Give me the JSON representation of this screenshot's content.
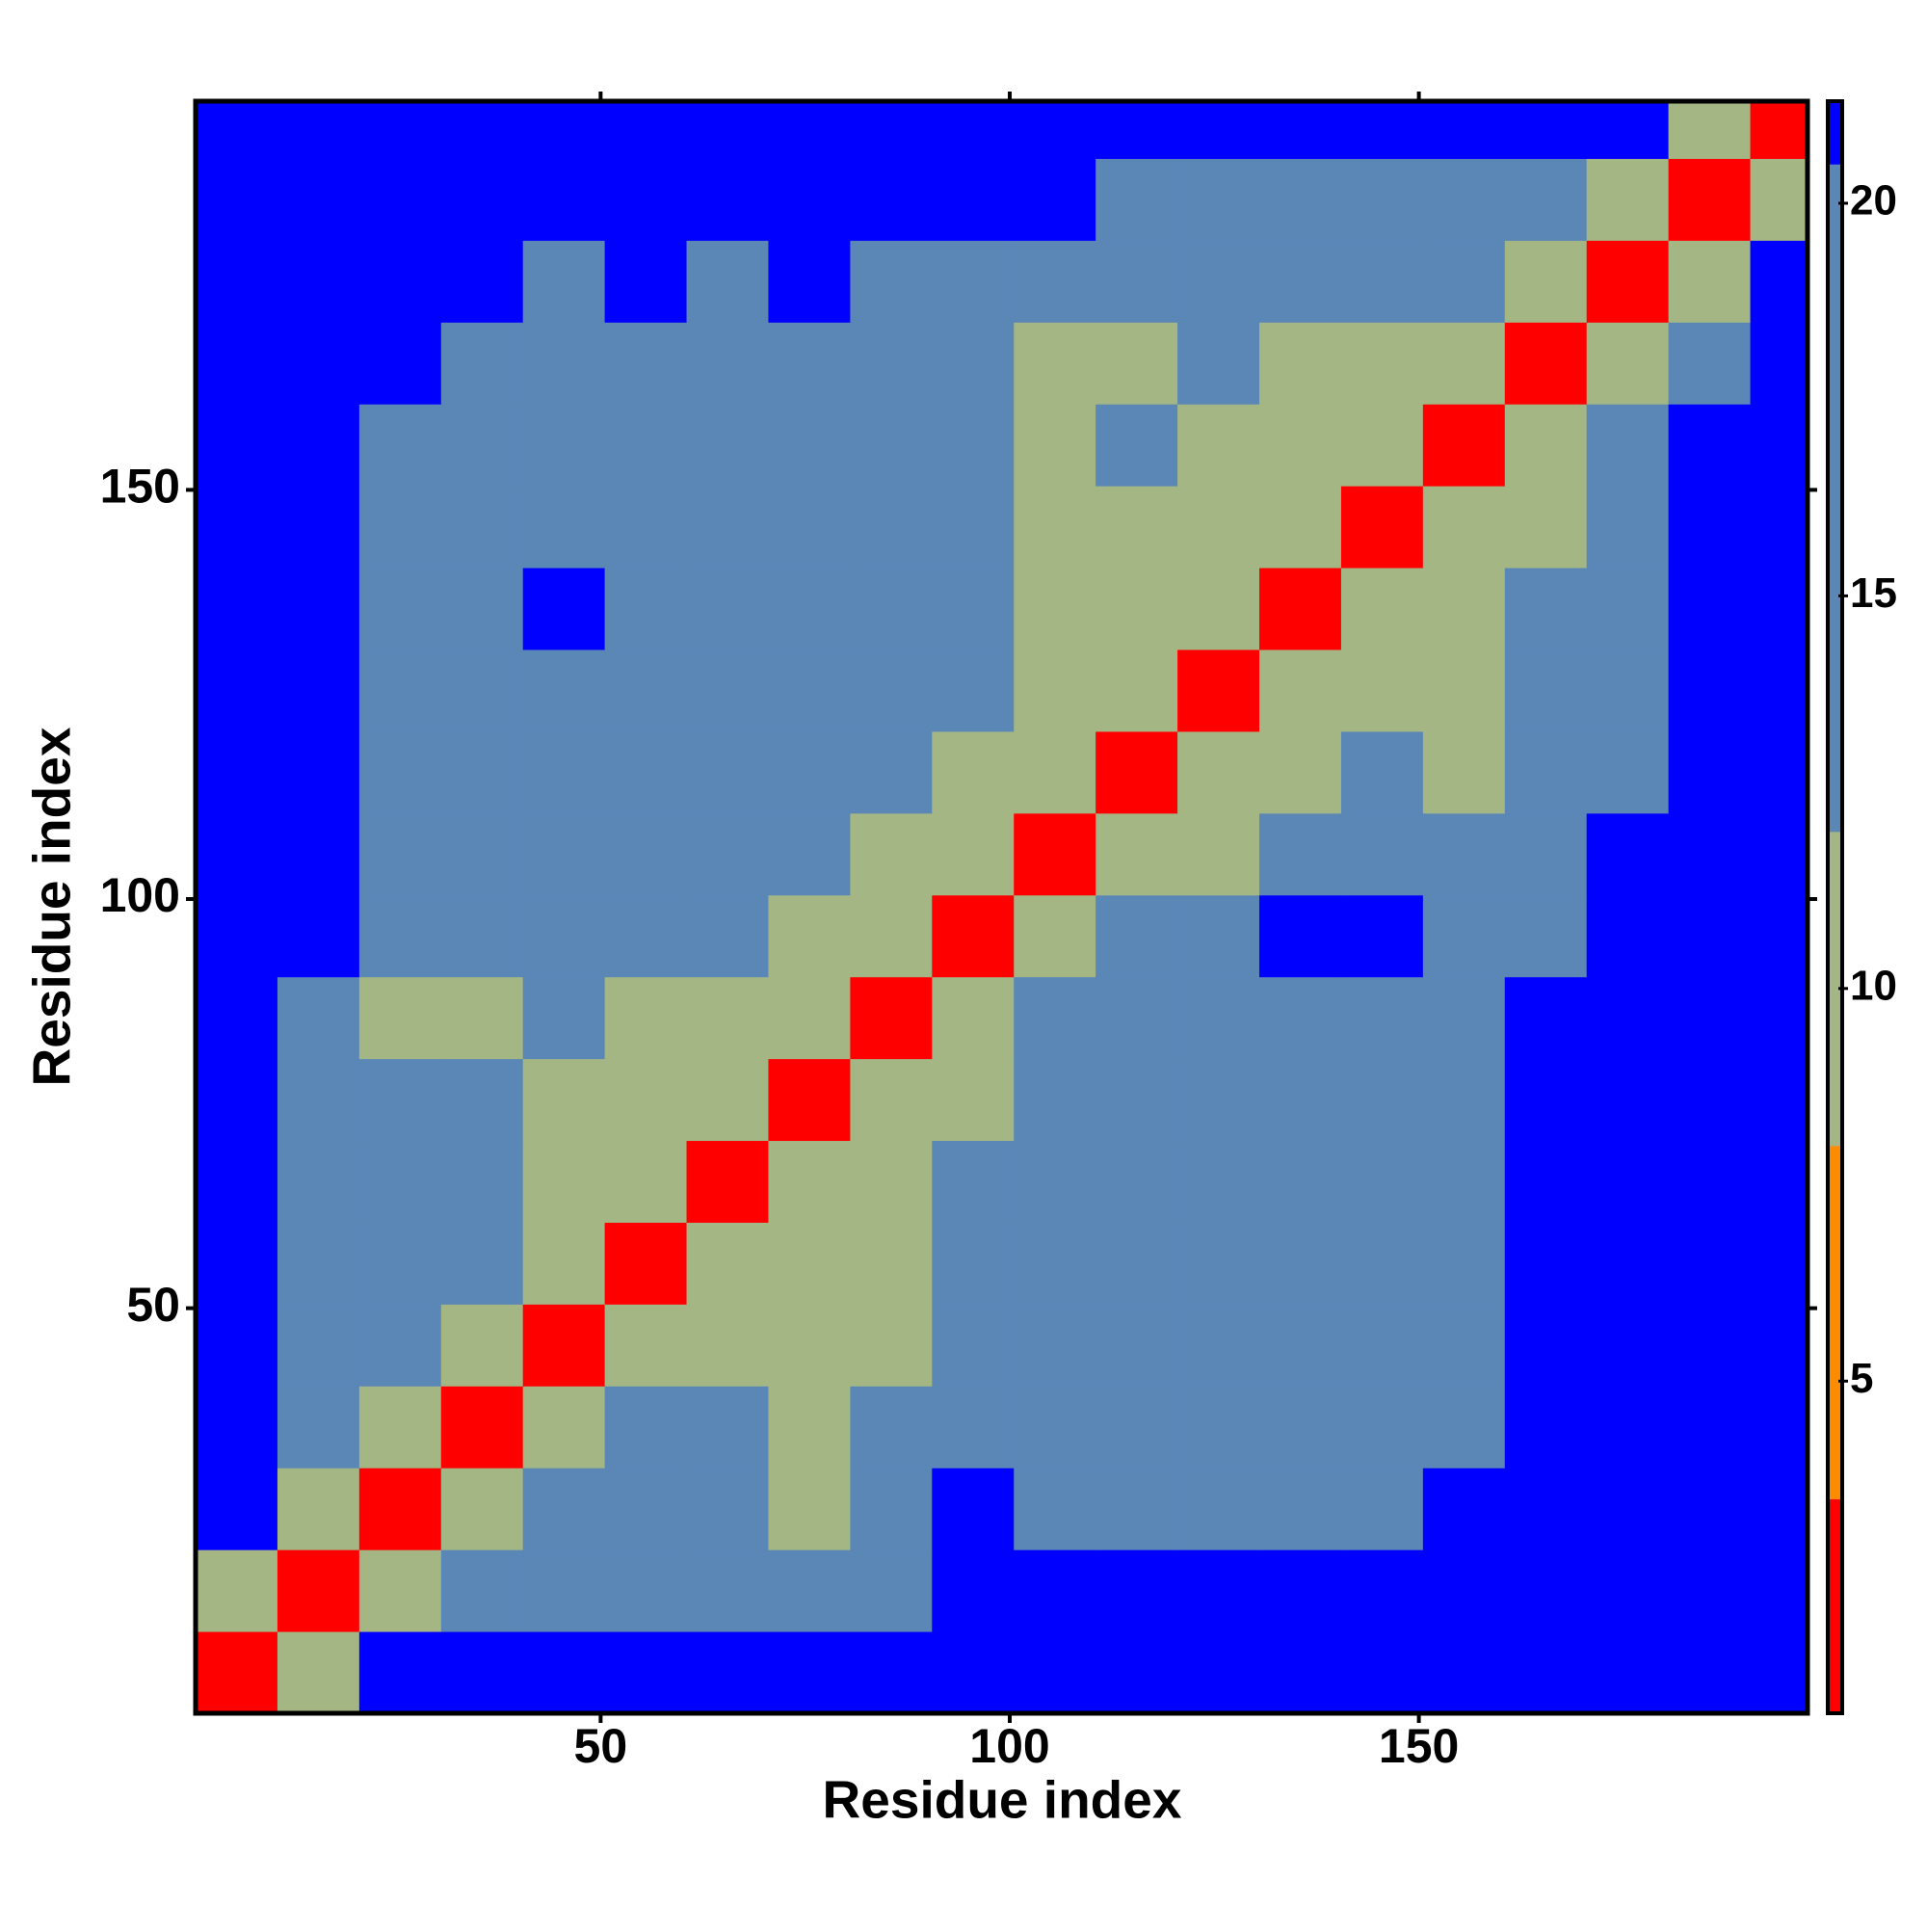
{
  "chart_data": {
    "type": "heatmap",
    "xlabel": "Residue index",
    "ylabel": "Residue index",
    "xlim": [
      0.5,
      197.5
    ],
    "ylim": [
      0.5,
      197.5
    ],
    "xticks": [
      50,
      100,
      150
    ],
    "yticks": [
      50,
      100,
      150
    ],
    "bins": [
      0.5,
      10.5,
      20.5,
      30.5,
      40.5,
      50.5,
      60.5,
      70.5,
      80.5,
      90.5,
      100.5,
      110.5,
      120.5,
      130.5,
      140.5,
      150.5,
      160.5,
      170.5,
      180.5,
      190.5,
      197.5
    ],
    "z": [
      [
        2,
        9,
        21,
        21,
        21,
        21,
        21,
        21,
        21,
        21,
        21,
        21,
        21,
        21,
        21,
        21,
        21,
        21,
        21,
        21
      ],
      [
        9,
        2,
        9,
        15,
        15,
        15,
        15,
        15,
        15,
        21,
        21,
        21,
        21,
        21,
        21,
        21,
        21,
        21,
        21,
        21
      ],
      [
        21,
        9,
        2,
        9,
        15,
        15,
        15,
        9,
        15,
        21,
        15,
        15,
        15,
        15,
        15,
        21,
        21,
        21,
        21,
        21
      ],
      [
        21,
        15,
        9,
        2,
        9,
        15,
        15,
        9,
        15,
        18,
        15,
        15,
        15,
        15,
        15,
        15,
        21,
        21,
        21,
        21
      ],
      [
        21,
        15,
        15,
        9,
        2,
        9,
        9,
        9,
        9,
        15,
        15,
        15,
        15,
        15,
        15,
        15,
        21,
        21,
        21,
        21
      ],
      [
        21,
        15,
        15,
        15,
        9,
        2,
        9,
        9,
        9,
        15,
        15,
        18,
        15,
        15,
        15,
        15,
        21,
        21,
        21,
        21
      ],
      [
        21,
        15,
        15,
        15,
        9,
        9,
        2,
        9,
        9,
        15,
        15,
        15,
        18,
        15,
        15,
        15,
        21,
        21,
        21,
        21
      ],
      [
        21,
        15,
        15,
        15,
        9,
        9,
        9,
        2,
        9,
        9,
        15,
        15,
        15,
        15,
        15,
        15,
        21,
        21,
        21,
        21
      ],
      [
        21,
        15,
        9,
        9,
        15,
        9,
        9,
        9,
        2,
        9,
        15,
        15,
        15,
        18,
        15,
        15,
        21,
        21,
        21,
        21
      ],
      [
        21,
        21,
        15,
        15,
        15,
        15,
        15,
        9,
        9,
        2,
        9,
        15,
        15,
        21,
        21,
        15,
        15,
        21,
        21,
        21
      ],
      [
        21,
        21,
        15,
        15,
        15,
        15,
        15,
        15,
        9,
        9,
        2,
        9,
        9,
        15,
        15,
        15,
        15,
        21,
        21,
        21
      ],
      [
        21,
        21,
        15,
        15,
        15,
        15,
        15,
        15,
        15,
        9,
        9,
        2,
        9,
        9,
        15,
        9,
        15,
        15,
        21,
        21
      ],
      [
        21,
        21,
        15,
        15,
        15,
        15,
        15,
        15,
        15,
        15,
        9,
        9,
        2,
        9,
        9,
        9,
        15,
        15,
        21,
        21
      ],
      [
        21,
        21,
        15,
        15,
        21,
        15,
        15,
        15,
        15,
        15,
        9,
        9,
        9,
        2,
        9,
        9,
        15,
        15,
        21,
        21
      ],
      [
        21,
        21,
        15,
        15,
        15,
        15,
        15,
        15,
        15,
        15,
        9,
        9,
        9,
        9,
        2,
        9,
        9,
        15,
        21,
        21
      ],
      [
        21,
        21,
        15,
        15,
        15,
        15,
        15,
        15,
        15,
        15,
        9,
        15,
        9,
        9,
        9,
        2,
        9,
        15,
        21,
        21
      ],
      [
        21,
        21,
        21,
        15,
        15,
        15,
        15,
        15,
        15,
        15,
        9,
        9,
        15,
        9,
        9,
        9,
        2,
        9,
        15,
        21
      ],
      [
        21,
        21,
        21,
        21,
        15,
        21,
        15,
        21,
        15,
        15,
        15,
        15,
        15,
        15,
        15,
        15,
        9,
        2,
        9,
        21
      ],
      [
        21,
        21,
        21,
        21,
        21,
        21,
        21,
        21,
        21,
        21,
        21,
        15,
        15,
        15,
        15,
        15,
        15,
        9,
        2,
        9
      ],
      [
        21,
        21,
        21,
        21,
        21,
        21,
        21,
        21,
        21,
        21,
        21,
        21,
        21,
        21,
        21,
        21,
        21,
        21,
        9,
        2
      ]
    ],
    "clim": [
      0.77,
      21.3
    ],
    "cticks": [
      5,
      10,
      15,
      20
    ],
    "color_bands": [
      {
        "from": 0.77,
        "to": 3.5,
        "color": "#ff0000"
      },
      {
        "from": 3.5,
        "to": 8,
        "color": "#ff8c00"
      },
      {
        "from": 8,
        "to": 12,
        "color": "#a4b684"
      },
      {
        "from": 12,
        "to": 20.5,
        "color": "#5b87b7"
      },
      {
        "from": 20.5,
        "to": 21.3,
        "color": "#0000ff"
      }
    ]
  }
}
